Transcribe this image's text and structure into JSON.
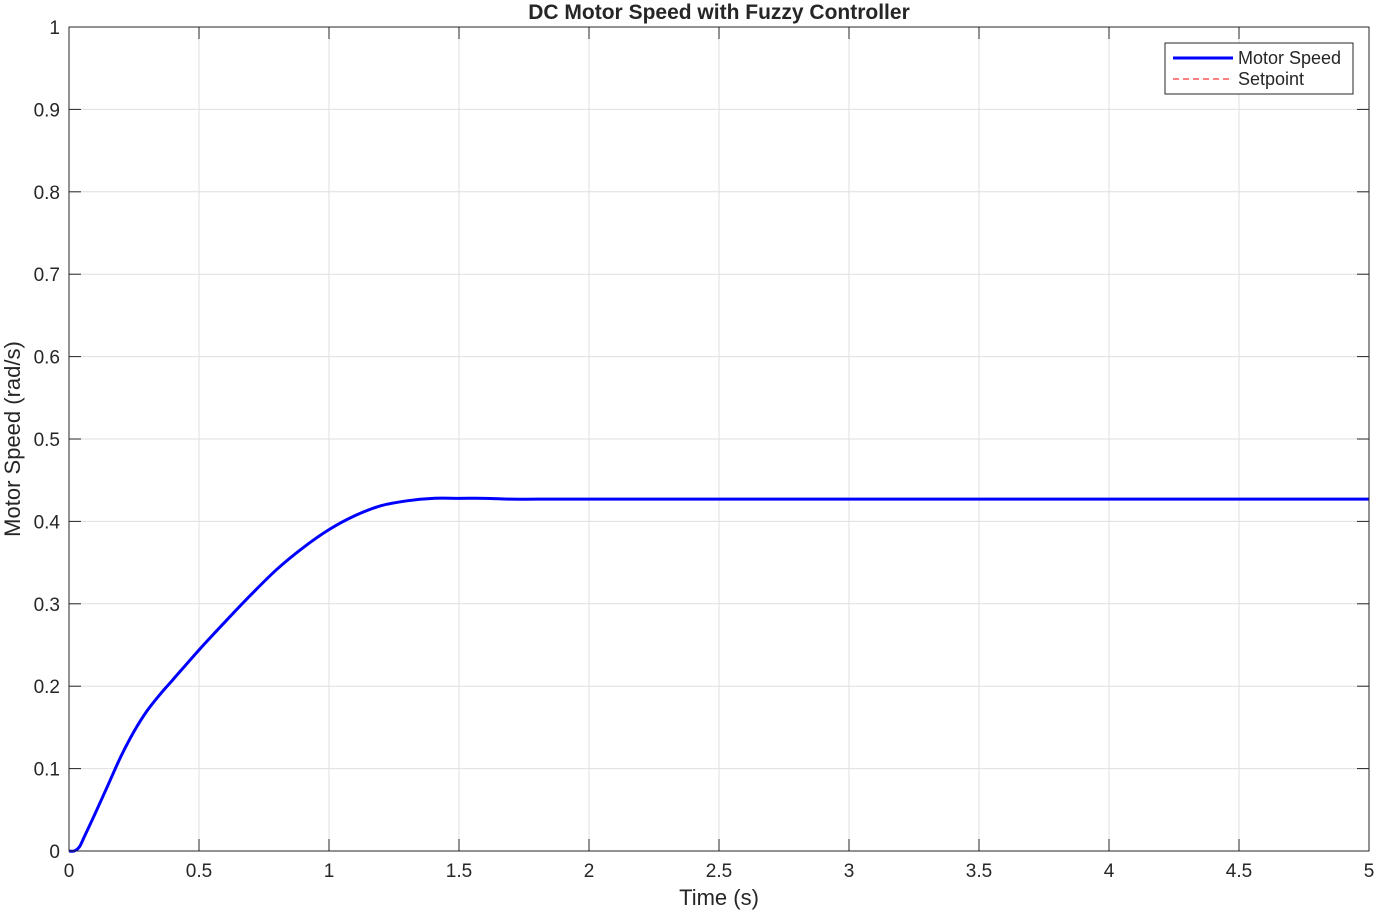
{
  "chart_data": {
    "type": "line",
    "title": "DC Motor Speed with Fuzzy Controller",
    "xlabel": "Time (s)",
    "ylabel": "Motor Speed (rad/s)",
    "xlim": [
      0,
      5
    ],
    "ylim": [
      0,
      1
    ],
    "xticks": [
      0,
      0.5,
      1,
      1.5,
      2,
      2.5,
      3,
      3.5,
      4,
      4.5,
      5
    ],
    "xtick_labels": [
      "0",
      "0.5",
      "1",
      "1.5",
      "2",
      "2.5",
      "3",
      "3.5",
      "4",
      "4.5",
      "5"
    ],
    "yticks": [
      0,
      0.1,
      0.2,
      0.3,
      0.4,
      0.5,
      0.6,
      0.7,
      0.8,
      0.9,
      1
    ],
    "ytick_labels": [
      "0",
      "0.1",
      "0.2",
      "0.3",
      "0.4",
      "0.5",
      "0.6",
      "0.7",
      "0.8",
      "0.9",
      "1"
    ],
    "grid": true,
    "legend_position": "top-right",
    "series": [
      {
        "name": "Motor Speed",
        "color": "#0000ff",
        "style": "solid",
        "x": [
          0,
          0.02,
          0.04,
          0.06,
          0.1,
          0.15,
          0.2,
          0.25,
          0.3,
          0.35,
          0.4,
          0.5,
          0.6,
          0.7,
          0.8,
          0.9,
          1.0,
          1.1,
          1.2,
          1.3,
          1.4,
          1.5,
          1.6,
          1.7,
          1.8,
          2.0,
          2.5,
          3.0,
          3.5,
          4.0,
          4.5,
          5.0
        ],
        "y": [
          0,
          0,
          0.005,
          0.018,
          0.045,
          0.08,
          0.115,
          0.145,
          0.17,
          0.19,
          0.208,
          0.244,
          0.278,
          0.311,
          0.342,
          0.368,
          0.39,
          0.407,
          0.419,
          0.425,
          0.428,
          0.428,
          0.428,
          0.427,
          0.427,
          0.427,
          0.427,
          0.427,
          0.427,
          0.427,
          0.427,
          0.427
        ]
      },
      {
        "name": "Setpoint",
        "color": "#ff0000",
        "style": "dashed",
        "x": [
          0,
          5
        ],
        "y": [
          1,
          1
        ]
      }
    ]
  }
}
